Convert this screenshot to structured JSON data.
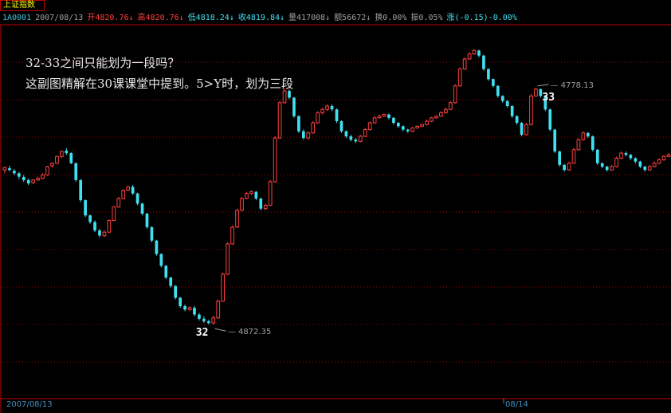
{
  "window": {
    "title": "上证指数"
  },
  "info_bar": {
    "code": "1A0001",
    "date": "2007/08/13",
    "open": "开4820.76↓",
    "high": "高4820.76↓",
    "low": "低4818.24↓",
    "close": "收4819.84↓",
    "volume": "量417008↓",
    "amount": "额56672↓",
    "turnover": "换0.00%",
    "amplitude": "振0.05%",
    "change": "涨(-0.15)-0.00%"
  },
  "note": {
    "line1": "32-33之间只能划为一段吗？",
    "line2": "这副图精解在30课课堂中提到。5>Y时，划为三段"
  },
  "colors": {
    "up": "#ff4040",
    "down": "#40e0f0",
    "grid": "#b00000",
    "axis": "#c00000",
    "date": "#4090c0"
  },
  "chart_data": {
    "type": "candlestick",
    "ylim": [
      2700,
      4900
    ],
    "annotations": [
      {
        "label": "32",
        "price_label": "4872.35",
        "index": 44
      },
      {
        "label": "33",
        "price_label": "4778.13",
        "index": 112
      }
    ],
    "x_labels": [
      "2007/08/13",
      "08/14"
    ],
    "candles": [
      [
        4060,
        4075,
        4040,
        4080
      ],
      [
        4070,
        4060,
        4050,
        4085
      ],
      [
        4055,
        4040,
        4030,
        4065
      ],
      [
        4040,
        4020,
        4005,
        4048
      ],
      [
        4018,
        4000,
        3990,
        4030
      ],
      [
        4000,
        3980,
        3970,
        4010
      ],
      [
        3985,
        4000,
        3975,
        4005
      ],
      [
        4000,
        4010,
        3995,
        4020
      ],
      [
        4010,
        4030,
        4005,
        4040
      ],
      [
        4030,
        4080,
        4025,
        4085
      ],
      [
        4085,
        4100,
        4075,
        4105
      ],
      [
        4100,
        4140,
        4095,
        4145
      ],
      [
        4140,
        4170,
        4130,
        4175
      ],
      [
        4175,
        4160,
        4150,
        4190
      ],
      [
        4160,
        4100,
        4095,
        4165
      ],
      [
        4100,
        4000,
        3990,
        4105
      ],
      [
        4000,
        3880,
        3870,
        4005
      ],
      [
        3880,
        3790,
        3780,
        3885
      ],
      [
        3790,
        3750,
        3740,
        3795
      ],
      [
        3750,
        3700,
        3690,
        3760
      ],
      [
        3700,
        3670,
        3660,
        3710
      ],
      [
        3670,
        3690,
        3660,
        3700
      ],
      [
        3690,
        3760,
        3685,
        3765
      ],
      [
        3760,
        3840,
        3755,
        3845
      ],
      [
        3840,
        3890,
        3835,
        3900
      ],
      [
        3890,
        3940,
        3885,
        3945
      ],
      [
        3940,
        3960,
        3935,
        3965
      ],
      [
        3960,
        3920,
        3910,
        3970
      ],
      [
        3920,
        3860,
        3850,
        3925
      ],
      [
        3860,
        3800,
        3790,
        3865
      ],
      [
        3800,
        3720,
        3710,
        3805
      ],
      [
        3720,
        3640,
        3630,
        3725
      ],
      [
        3640,
        3560,
        3550,
        3645
      ],
      [
        3560,
        3490,
        3480,
        3565
      ],
      [
        3490,
        3420,
        3410,
        3495
      ],
      [
        3420,
        3370,
        3360,
        3425
      ],
      [
        3370,
        3300,
        3290,
        3375
      ],
      [
        3300,
        3250,
        3240,
        3305
      ],
      [
        3250,
        3230,
        3220,
        3260
      ],
      [
        3230,
        3240,
        3220,
        3250
      ],
      [
        3240,
        3200,
        3190,
        3250
      ],
      [
        3200,
        3175,
        3165,
        3210
      ],
      [
        3175,
        3160,
        3150,
        3190
      ],
      [
        3160,
        3150,
        3140,
        3170
      ],
      [
        3150,
        3180,
        3140,
        3195
      ],
      [
        3180,
        3280,
        3175,
        3290
      ],
      [
        3280,
        3440,
        3275,
        3450
      ],
      [
        3440,
        3620,
        3435,
        3630
      ],
      [
        3620,
        3720,
        3615,
        3730
      ],
      [
        3720,
        3820,
        3715,
        3830
      ],
      [
        3820,
        3890,
        3815,
        3900
      ],
      [
        3890,
        3920,
        3885,
        3930
      ],
      [
        3920,
        3930,
        3910,
        3940
      ],
      [
        3930,
        3890,
        3880,
        3935
      ],
      [
        3890,
        3830,
        3820,
        3895
      ],
      [
        3830,
        3850,
        3820,
        3860
      ],
      [
        3850,
        3990,
        3845,
        4000
      ],
      [
        3990,
        4250,
        3985,
        4260
      ],
      [
        4250,
        4460,
        4245,
        4470
      ],
      [
        4460,
        4530,
        4455,
        4545
      ],
      [
        4530,
        4490,
        4480,
        4540
      ],
      [
        4490,
        4380,
        4370,
        4495
      ],
      [
        4380,
        4290,
        4280,
        4385
      ],
      [
        4290,
        4250,
        4240,
        4300
      ],
      [
        4250,
        4280,
        4240,
        4290
      ],
      [
        4280,
        4340,
        4275,
        4350
      ],
      [
        4340,
        4400,
        4335,
        4410
      ],
      [
        4400,
        4420,
        4390,
        4430
      ],
      [
        4420,
        4440,
        4410,
        4450
      ],
      [
        4440,
        4420,
        4410,
        4450
      ],
      [
        4420,
        4350,
        4340,
        4425
      ],
      [
        4350,
        4290,
        4280,
        4355
      ],
      [
        4290,
        4260,
        4250,
        4295
      ],
      [
        4260,
        4240,
        4230,
        4270
      ],
      [
        4240,
        4230,
        4220,
        4250
      ],
      [
        4230,
        4260,
        4225,
        4270
      ],
      [
        4260,
        4300,
        4255,
        4310
      ],
      [
        4300,
        4340,
        4295,
        4350
      ],
      [
        4340,
        4370,
        4335,
        4380
      ],
      [
        4370,
        4380,
        4365,
        4390
      ],
      [
        4380,
        4390,
        4375,
        4395
      ],
      [
        4390,
        4370,
        4360,
        4395
      ],
      [
        4370,
        4340,
        4330,
        4375
      ],
      [
        4340,
        4320,
        4310,
        4345
      ],
      [
        4320,
        4300,
        4290,
        4325
      ],
      [
        4300,
        4290,
        4280,
        4305
      ],
      [
        4290,
        4310,
        4285,
        4315
      ],
      [
        4310,
        4320,
        4305,
        4325
      ],
      [
        4320,
        4330,
        4315,
        4335
      ],
      [
        4330,
        4350,
        4325,
        4360
      ],
      [
        4350,
        4370,
        4345,
        4375
      ],
      [
        4370,
        4380,
        4365,
        4385
      ],
      [
        4380,
        4400,
        4375,
        4410
      ],
      [
        4400,
        4420,
        4395,
        4430
      ],
      [
        4420,
        4460,
        4415,
        4470
      ],
      [
        4460,
        4560,
        4455,
        4570
      ],
      [
        4560,
        4660,
        4555,
        4670
      ],
      [
        4660,
        4720,
        4655,
        4730
      ],
      [
        4720,
        4750,
        4715,
        4760
      ],
      [
        4750,
        4770,
        4745,
        4778
      ],
      [
        4770,
        4740,
        4730,
        4775
      ],
      [
        4740,
        4660,
        4650,
        4745
      ],
      [
        4660,
        4600,
        4590,
        4665
      ],
      [
        4600,
        4560,
        4550,
        4605
      ],
      [
        4560,
        4500,
        4490,
        4565
      ],
      [
        4500,
        4470,
        4460,
        4505
      ],
      [
        4470,
        4440,
        4430,
        4475
      ],
      [
        4440,
        4380,
        4370,
        4445
      ],
      [
        4380,
        4340,
        4330,
        4385
      ],
      [
        4340,
        4270,
        4260,
        4345
      ],
      [
        4270,
        4330,
        4265,
        4340
      ],
      [
        4330,
        4500,
        4325,
        4510
      ],
      [
        4500,
        4540,
        4495,
        4550
      ],
      [
        4540,
        4500,
        4490,
        4545
      ],
      [
        4500,
        4420,
        4410,
        4505
      ],
      [
        4420,
        4300,
        4290,
        4425
      ],
      [
        4300,
        4170,
        4160,
        4305
      ],
      [
        4170,
        4090,
        4080,
        4175
      ],
      [
        4090,
        4060,
        4050,
        4095
      ],
      [
        4060,
        4100,
        4055,
        4110
      ],
      [
        4100,
        4180,
        4095,
        4190
      ],
      [
        4180,
        4240,
        4175,
        4250
      ],
      [
        4240,
        4280,
        4235,
        4290
      ],
      [
        4280,
        4260,
        4250,
        4285
      ],
      [
        4260,
        4180,
        4170,
        4265
      ],
      [
        4180,
        4100,
        4090,
        4185
      ],
      [
        4100,
        4080,
        4070,
        4105
      ],
      [
        4080,
        4060,
        4050,
        4085
      ],
      [
        4060,
        4080,
        4055,
        4090
      ],
      [
        4080,
        4130,
        4075,
        4140
      ],
      [
        4130,
        4160,
        4125,
        4170
      ],
      [
        4160,
        4150,
        4140,
        4170
      ],
      [
        4150,
        4130,
        4120,
        4155
      ],
      [
        4130,
        4110,
        4100,
        4135
      ],
      [
        4110,
        4080,
        4070,
        4115
      ],
      [
        4080,
        4060,
        4050,
        4085
      ],
      [
        4060,
        4080,
        4055,
        4090
      ],
      [
        4080,
        4100,
        4075,
        4110
      ],
      [
        4100,
        4120,
        4095,
        4130
      ],
      [
        4120,
        4140,
        4115,
        4150
      ],
      [
        4140,
        4150,
        4135,
        4160
      ]
    ]
  }
}
